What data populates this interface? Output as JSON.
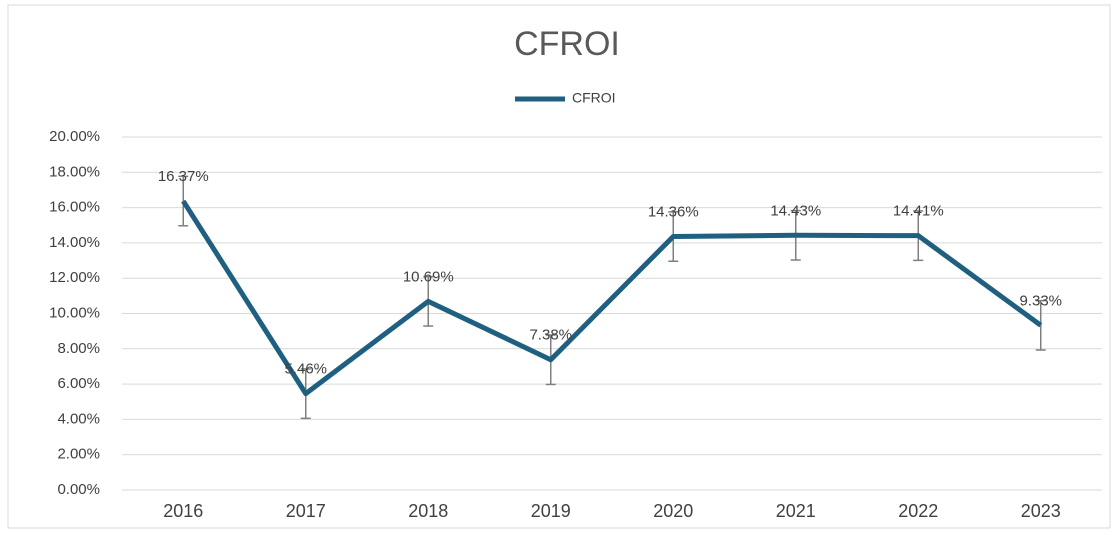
{
  "chart_data": {
    "type": "line",
    "title": "CFROI",
    "categories": [
      "2016",
      "2017",
      "2018",
      "2019",
      "2020",
      "2021",
      "2022",
      "2023"
    ],
    "series": [
      {
        "name": "CFROI",
        "color": "#1f5f7f",
        "values": [
          16.37,
          5.46,
          10.69,
          7.38,
          14.36,
          14.43,
          14.41,
          9.33
        ],
        "value_labels": [
          "16.37%",
          "5.46%",
          "10.69%",
          "7.38%",
          "14.36%",
          "14.43%",
          "14.41%",
          "9.33%"
        ],
        "errors": [
          1.4,
          1.4,
          1.4,
          1.4,
          1.4,
          1.4,
          1.4,
          1.4
        ]
      }
    ],
    "ylim": [
      0,
      20
    ],
    "yticks": [
      {
        "value": 0,
        "label": "0.00%"
      },
      {
        "value": 2,
        "label": "2.00%"
      },
      {
        "value": 4,
        "label": "4.00%"
      },
      {
        "value": 6,
        "label": "6.00%"
      },
      {
        "value": 8,
        "label": "8.00%"
      },
      {
        "value": 10,
        "label": "10.00%"
      },
      {
        "value": 12,
        "label": "12.00%"
      },
      {
        "value": 14,
        "label": "14.00%"
      },
      {
        "value": 16,
        "label": "16.00%"
      },
      {
        "value": 18,
        "label": "18.00%"
      },
      {
        "value": 20,
        "label": "20.00%"
      }
    ],
    "grid": true,
    "legend": "top"
  }
}
